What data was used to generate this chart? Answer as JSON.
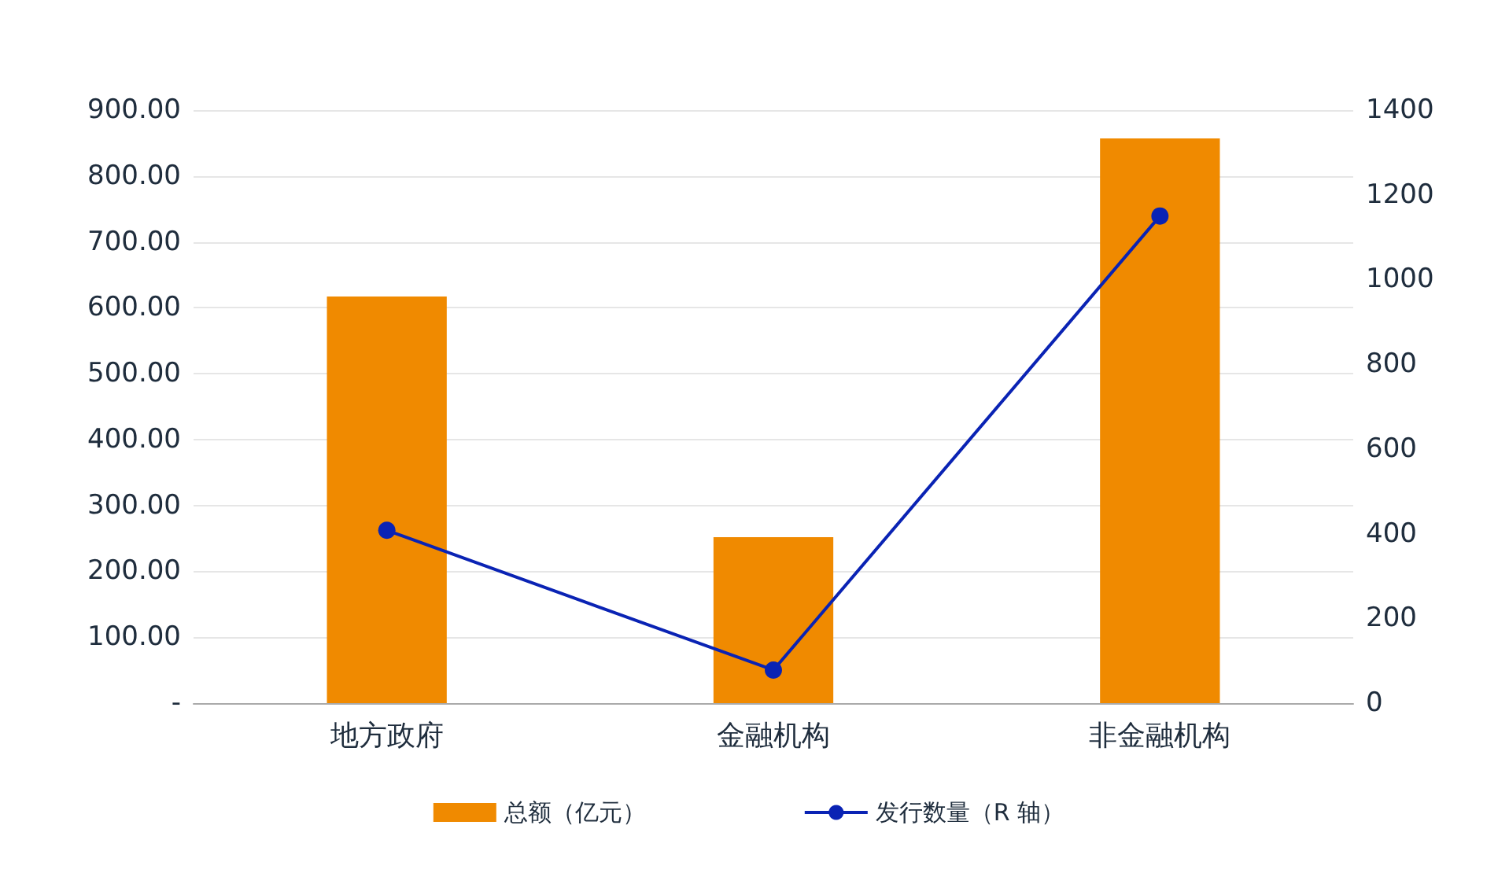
{
  "chart_data": {
    "type": "bar",
    "categories": [
      "地方政府",
      "金融机构",
      "非金融机构"
    ],
    "series": [
      {
        "name": "总额（亿元）",
        "color": "#f08a00",
        "values": [
          617,
          252,
          857
        ]
      },
      {
        "name": "发行数量（R 轴）",
        "type": "line",
        "axis": "y2",
        "color": "#0a23b4",
        "values": [
          408,
          78,
          1150
        ]
      }
    ],
    "ylim": [
      0,
      900
    ],
    "yticks": [
      {
        "value": 0,
        "label": "-"
      },
      {
        "value": 100,
        "label": "100.00"
      },
      {
        "value": 200,
        "label": "200.00"
      },
      {
        "value": 300,
        "label": "300.00"
      },
      {
        "value": 400,
        "label": "400.00"
      },
      {
        "value": 500,
        "label": "500.00"
      },
      {
        "value": 600,
        "label": "600.00"
      },
      {
        "value": 700,
        "label": "700.00"
      },
      {
        "value": 800,
        "label": "800.00"
      },
      {
        "value": 900,
        "label": "900.00"
      }
    ],
    "y2lim": [
      0,
      1400
    ],
    "y2ticks": [
      0,
      200,
      400,
      600,
      800,
      1000,
      1200,
      1400
    ],
    "grid": "y",
    "legend": "bottom",
    "marker": "circle",
    "line_style": "solid"
  }
}
